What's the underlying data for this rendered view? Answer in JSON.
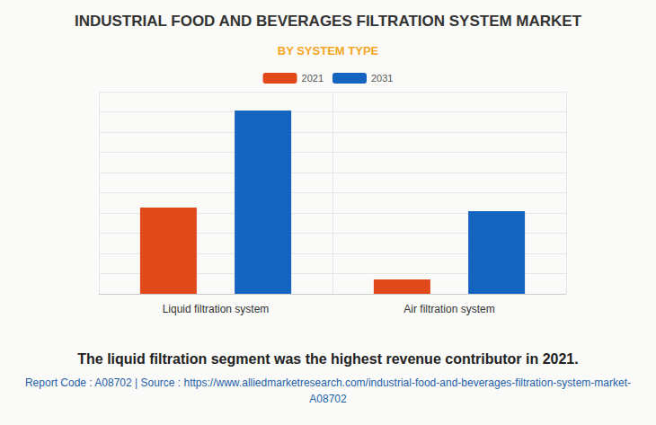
{
  "chart_data": {
    "type": "bar",
    "title": "INDUSTRIAL FOOD AND BEVERAGES FILTRATION SYSTEM MARKET",
    "subtitle": "BY SYSTEM TYPE",
    "categories": [
      "Liquid filtration system",
      "Air filtration system"
    ],
    "series": [
      {
        "name": "2021",
        "color": "#e04a1a",
        "values": [
          4.27,
          0.71
        ]
      },
      {
        "name": "2031",
        "color": "#1565c0",
        "values": [
          9.07,
          4.09
        ]
      }
    ],
    "ylim": [
      0,
      10
    ],
    "yticks": [
      0,
      1,
      2,
      3,
      4,
      5,
      6,
      7,
      8,
      9,
      10
    ],
    "grid": true,
    "legend": "top",
    "tick_labels": "x",
    "caption": "The liquid filtration segment was the highest revenue contributor in 2021.",
    "source": "Report Code : A08702  |  Source : https://www.alliedmarketresearch.com/industrial-food-and-beverages-filtration-system-market-A08702"
  }
}
